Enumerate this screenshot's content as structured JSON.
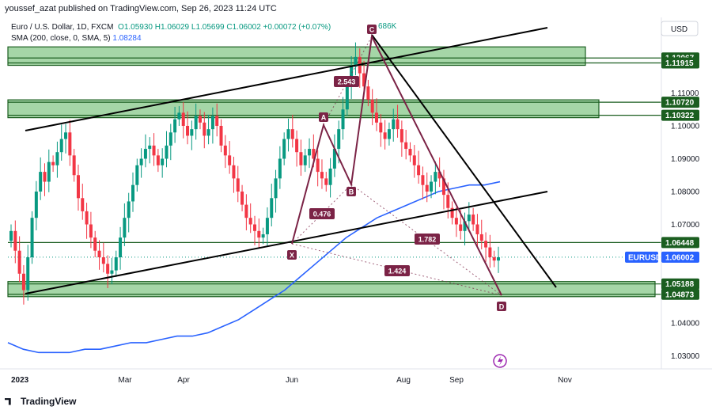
{
  "header": {
    "publisher_line": "youssef_azat published on TradingView.com, Sep 26, 2023 11:24 UTC",
    "currency": "USD"
  },
  "legend": {
    "symbol": "Euro / U.S. Dollar, 1D, FXCM",
    "ohlc": "O1.05930 H1.06029 L1.05699 C1.06002 +0.00072 (+0.07%)",
    "sma_label": "SMA (200, close, 0, SMA, 5)",
    "sma_value": "1.08284",
    "sma_visible_tail": "686K"
  },
  "footer": {
    "brand": "TradingView"
  },
  "colors": {
    "zone_fill": "#a5d6a7",
    "zone_border": "#1b5e20",
    "sma_line": "#2962ff",
    "pattern_line": "#7b2346",
    "trend_line": "#000000",
    "candle_up": "#089981",
    "candle_down": "#f23645",
    "price_badge": "#1b5e20",
    "symbol_badge": "#2962ff"
  },
  "chart_data": {
    "type": "candlestick",
    "title": "Euro / U.S. Dollar, 1D, FXCM",
    "x_ticks": [
      "2023",
      "Mar",
      "Apr",
      "Jun",
      "Aug",
      "Sep",
      "Nov"
    ],
    "y_ticks": [
      "1.11000",
      "1.10000",
      "1.09000",
      "1.08000",
      "1.07000",
      "1.06000",
      "1.04000",
      "1.03000"
    ],
    "ylim": [
      1.023,
      1.132
    ],
    "grid": false,
    "current_price": {
      "label": "EURUSD",
      "value": "1.06002"
    },
    "price_levels": [
      {
        "value": 1.12067,
        "label": "1.12067"
      },
      {
        "value": 1.11915,
        "label": "1.11915"
      },
      {
        "value": 1.1072,
        "label": "1.10720"
      },
      {
        "value": 1.10322,
        "label": "1.10322"
      },
      {
        "value": 1.06448,
        "label": "1.06448"
      },
      {
        "value": 1.05188,
        "label": "1.05188"
      },
      {
        "value": 1.04873,
        "label": "1.04873"
      }
    ],
    "zones": [
      {
        "top": 1.12067,
        "bottom": 1.11915
      },
      {
        "top": 1.1072,
        "bottom": 1.10322
      },
      {
        "top": 1.05188,
        "bottom": 1.04873
      }
    ],
    "closes": [
      1.068,
      1.062,
      1.055,
      1.05,
      1.06,
      1.072,
      1.08,
      1.086,
      1.083,
      1.089,
      1.088,
      1.092,
      1.096,
      1.098,
      1.091,
      1.085,
      1.078,
      1.074,
      1.07,
      1.066,
      1.062,
      1.06,
      1.058,
      1.055,
      1.056,
      1.06,
      1.066,
      1.072,
      1.077,
      1.082,
      1.088,
      1.09,
      1.093,
      1.094,
      1.091,
      1.088,
      1.09,
      1.094,
      1.098,
      1.102,
      1.104,
      1.1,
      1.097,
      1.099,
      1.103,
      1.101,
      1.097,
      1.099,
      1.103,
      1.1,
      1.094,
      1.091,
      1.088,
      1.084,
      1.08,
      1.076,
      1.072,
      1.07,
      1.068,
      1.066,
      1.067,
      1.072,
      1.078,
      1.084,
      1.09,
      1.096,
      1.099,
      1.096,
      1.092,
      1.088,
      1.091,
      1.093,
      1.09,
      1.086,
      1.084,
      1.082,
      1.087,
      1.093,
      1.099,
      1.105,
      1.112,
      1.118,
      1.121,
      1.116,
      1.112,
      1.108,
      1.104,
      1.101,
      1.098,
      1.096,
      1.099,
      1.102,
      1.099,
      1.095,
      1.093,
      1.091,
      1.088,
      1.085,
      1.082,
      1.08,
      1.083,
      1.086,
      1.084,
      1.079,
      1.075,
      1.072,
      1.07,
      1.068,
      1.071,
      1.073,
      1.07,
      1.067,
      1.065,
      1.063,
      1.06,
      1.059,
      1.06
    ],
    "sma_200": [
      1.034,
      1.032,
      1.031,
      1.031,
      1.031,
      1.032,
      1.032,
      1.033,
      1.034,
      1.034,
      1.035,
      1.036,
      1.036,
      1.037,
      1.039,
      1.041,
      1.044,
      1.047,
      1.05,
      1.054,
      1.058,
      1.062,
      1.066,
      1.069,
      1.072,
      1.074,
      1.076,
      1.078,
      1.08,
      1.081,
      1.082,
      1.082,
      1.083
    ],
    "trend_lines": [
      {
        "from": [
          "2023",
          1.099
        ],
        "to": [
          "Oct",
          1.131
        ]
      },
      {
        "from": [
          "2023",
          1.049
        ],
        "to": [
          "Oct",
          1.08
        ]
      },
      {
        "from": [
          "Jul",
          1.123
        ],
        "to": [
          "Oct",
          1.052
        ]
      }
    ],
    "harmonic_pattern": {
      "points": [
        {
          "label": "X",
          "value": 1.0645
        },
        {
          "label": "A",
          "value": 1.1
        },
        {
          "label": "B",
          "value": 1.083
        },
        {
          "label": "C",
          "value": 1.123
        },
        {
          "label": "D",
          "value": 1.0485
        }
      ],
      "ratios": [
        {
          "label": "0.476"
        },
        {
          "label": "2.543"
        },
        {
          "label": "1.782"
        },
        {
          "label": "1.424"
        }
      ]
    }
  }
}
